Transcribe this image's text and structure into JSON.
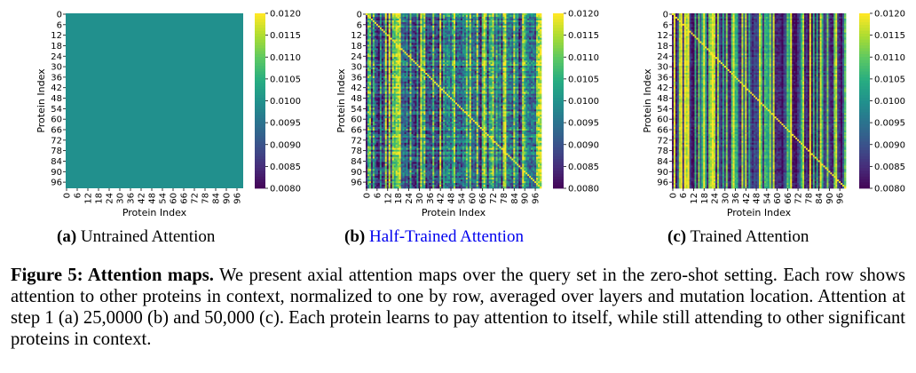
{
  "chart_data": [
    {
      "type": "heatmap",
      "xlabel": "Protein Index",
      "ylabel": "Protein Index",
      "x_ticks": [
        "0",
        "6",
        "12",
        "18",
        "24",
        "30",
        "36",
        "42",
        "48",
        "54",
        "60",
        "66",
        "72",
        "78",
        "84",
        "90",
        "96"
      ],
      "y_ticks": [
        "0",
        "6",
        "12",
        "18",
        "24",
        "30",
        "36",
        "42",
        "48",
        "54",
        "60",
        "66",
        "72",
        "78",
        "84",
        "90",
        "96"
      ],
      "size": [
        100,
        100
      ],
      "colormap": "viridis",
      "vmin": 0.008,
      "vmax": 0.012,
      "colorbar_ticks": [
        "0.0120",
        "0.0115",
        "0.0110",
        "0.0105",
        "0.0100",
        "0.0095",
        "0.0090",
        "0.0085",
        "0.0080"
      ],
      "pattern": "uniform",
      "value": 0.01
    },
    {
      "type": "heatmap",
      "xlabel": "Protein Index",
      "ylabel": "Protein Index",
      "x_ticks": [
        "0",
        "6",
        "12",
        "18",
        "24",
        "30",
        "36",
        "42",
        "48",
        "54",
        "60",
        "66",
        "72",
        "78",
        "84",
        "90",
        "96"
      ],
      "y_ticks": [
        "0",
        "6",
        "12",
        "18",
        "24",
        "30",
        "36",
        "42",
        "48",
        "54",
        "60",
        "66",
        "72",
        "78",
        "84",
        "90",
        "96"
      ],
      "size": [
        100,
        100
      ],
      "colormap": "viridis",
      "vmin": 0.008,
      "vmax": 0.012,
      "colorbar_ticks": [
        "0.0120",
        "0.0115",
        "0.0110",
        "0.0105",
        "0.0100",
        "0.0095",
        "0.0090",
        "0.0085",
        "0.0080"
      ],
      "pattern": "column-varying, mixed",
      "value": 0.01
    },
    {
      "type": "heatmap",
      "xlabel": "Protein Index",
      "ylabel": "Protein Index",
      "x_ticks": [
        "0",
        "6",
        "12",
        "18",
        "24",
        "30",
        "36",
        "42",
        "48",
        "54",
        "60",
        "66",
        "72",
        "78",
        "84",
        "90",
        "96"
      ],
      "y_ticks": [
        "0",
        "6",
        "12",
        "18",
        "24",
        "30",
        "36",
        "42",
        "48",
        "54",
        "60",
        "66",
        "72",
        "78",
        "84",
        "90",
        "96"
      ],
      "size": [
        100,
        100
      ],
      "colormap": "viridis",
      "vmin": 0.008,
      "vmax": 0.012,
      "colorbar_ticks": [
        "0.0120",
        "0.0115",
        "0.0110",
        "0.0105",
        "0.0100",
        "0.0095",
        "0.0090",
        "0.0085",
        "0.0080"
      ],
      "pattern": "column-dominant, strong stripes",
      "value": 0.01
    }
  ],
  "subcaptions": [
    {
      "label": "(a)",
      "text": "Untrained Attention"
    },
    {
      "label": "(b)",
      "text": "Half-Trained Attention"
    },
    {
      "label": "(c)",
      "text": "Trained Attention"
    }
  ],
  "figure_caption": {
    "lead": "Figure 5: Attention maps.",
    "body": "We present axial attention maps over the query set in the zero-shot setting. Each row shows attention to other proteins in context, normalized to one by row, averaged over layers and mutation location. Attention at step 1 (a) 25,0000 (b) and 50,000 (c). Each protein learns to pay attention to itself, while still attending to other significant proteins in context."
  }
}
